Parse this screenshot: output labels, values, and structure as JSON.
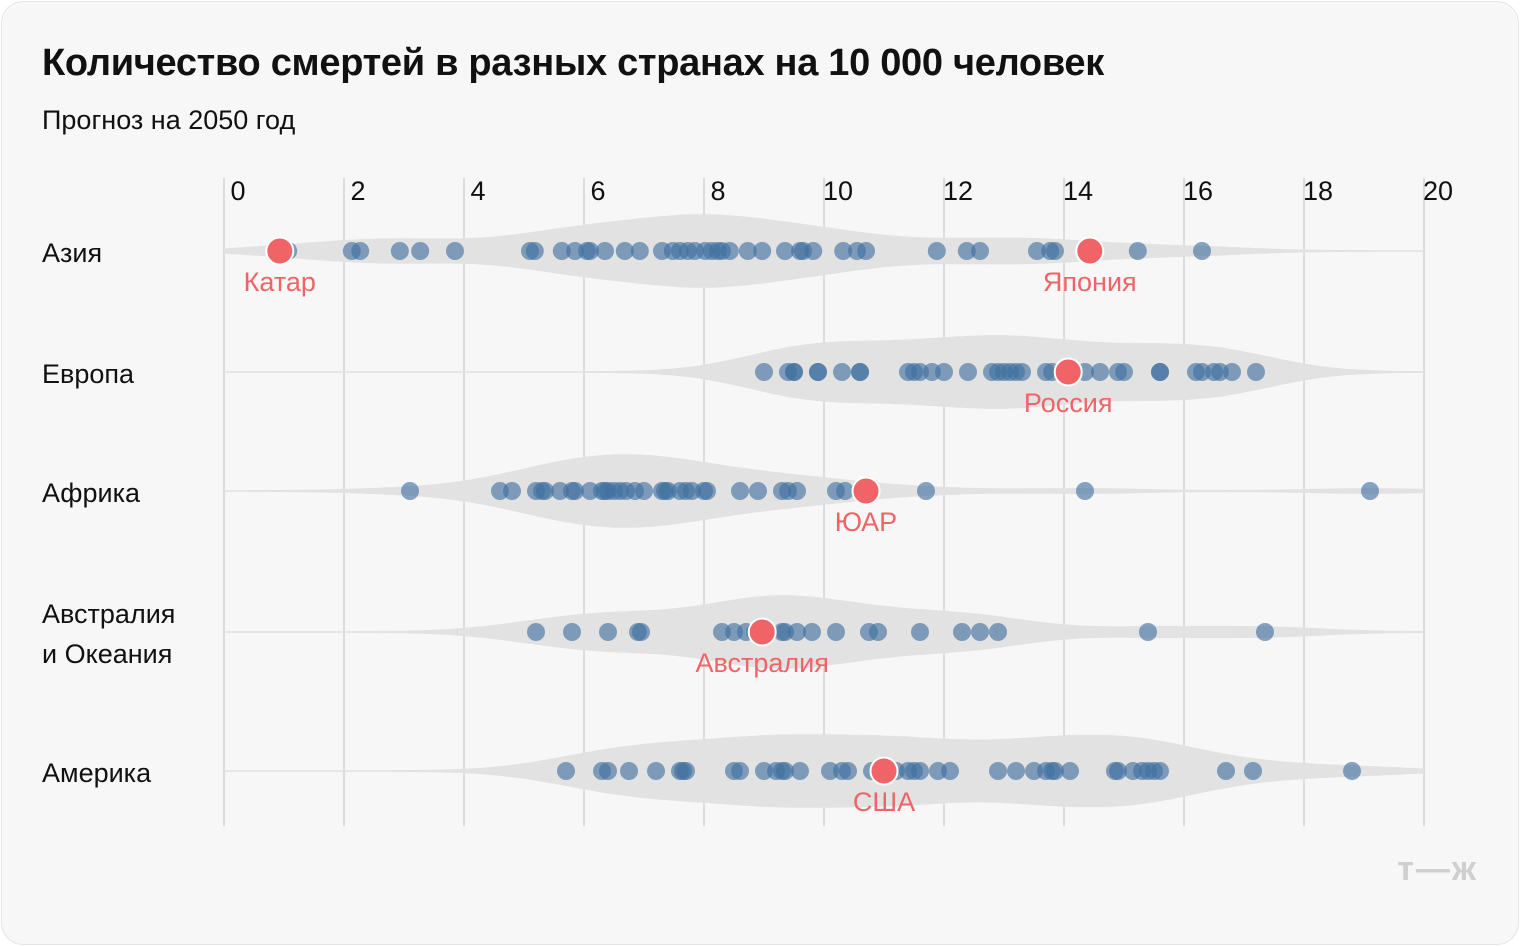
{
  "title": "Количество смертей в разных странах на 10 000 человек",
  "subtitle": "Прогноз на 2050 год",
  "logo": "т—ж",
  "chart_data": {
    "type": "violin-strip",
    "title": "Количество смертей в разных странах на 10 000 человек",
    "subtitle": "Прогноз на 2050 год",
    "xlim": [
      0,
      20
    ],
    "xticks": [
      0,
      2,
      4,
      6,
      8,
      10,
      12,
      14,
      16,
      18,
      20
    ],
    "grid": true,
    "colors": {
      "dots": "#3f6f9f",
      "highlight": "#f06468",
      "violin": "#e2e2e2"
    },
    "categories": [
      {
        "label": "Азия",
        "values": [
          1.07,
          2.13,
          2.27,
          2.93,
          3.27,
          3.85,
          5.1,
          5.18,
          5.63,
          5.85,
          6.05,
          6.1,
          6.35,
          6.68,
          6.93,
          7.3,
          7.48,
          7.6,
          7.73,
          7.85,
          8.02,
          8.13,
          8.23,
          8.3,
          8.43,
          8.73,
          8.97,
          9.35,
          9.6,
          9.65,
          9.82,
          10.32,
          10.55,
          10.7,
          11.88,
          12.38,
          12.6,
          13.55,
          13.77,
          13.85,
          15.23,
          16.3
        ],
        "highlights": [
          {
            "name": "Катар",
            "value": 0.93
          },
          {
            "name": "Япония",
            "value": 14.43
          }
        ]
      },
      {
        "label": "Европа",
        "values": [
          9.0,
          9.4,
          9.5,
          9.5,
          9.9,
          9.9,
          10.3,
          10.6,
          10.6,
          11.4,
          11.5,
          11.6,
          11.8,
          12.0,
          12.4,
          12.8,
          12.9,
          13.0,
          13.1,
          13.2,
          13.3,
          13.7,
          13.8,
          14.35,
          14.6,
          14.9,
          15.0,
          15.6,
          15.6,
          16.2,
          16.3,
          16.5,
          16.6,
          16.8,
          17.2
        ],
        "highlights": [
          {
            "name": "Россия",
            "value": 14.07
          }
        ]
      },
      {
        "label": "Африка",
        "values": [
          3.1,
          4.6,
          4.8,
          5.2,
          5.3,
          5.35,
          5.6,
          5.8,
          5.85,
          6.1,
          6.3,
          6.35,
          6.4,
          6.5,
          6.6,
          6.7,
          6.85,
          7.0,
          7.3,
          7.35,
          7.4,
          7.6,
          7.7,
          7.8,
          8.0,
          8.05,
          8.6,
          8.9,
          9.3,
          9.4,
          9.55,
          10.2,
          10.35,
          11.7,
          14.35,
          19.1
        ],
        "highlights": [
          {
            "name": "ЮАР",
            "value": 10.7
          }
        ]
      },
      {
        "label": "Австралия и Океания",
        "label_lines": [
          "Австралия",
          "и Океания"
        ],
        "values": [
          5.2,
          5.8,
          6.4,
          6.9,
          6.95,
          8.3,
          8.5,
          8.7,
          8.85,
          9.3,
          9.35,
          9.55,
          9.8,
          10.2,
          10.75,
          10.9,
          11.6,
          12.3,
          12.6,
          12.9,
          15.4,
          17.35
        ],
        "highlights": [
          {
            "name": "Австралия",
            "value": 8.97
          }
        ]
      },
      {
        "label": "Америка",
        "values": [
          5.7,
          6.3,
          6.4,
          6.75,
          7.2,
          7.6,
          7.65,
          7.7,
          8.5,
          8.6,
          9.0,
          9.2,
          9.3,
          9.35,
          9.6,
          10.1,
          10.3,
          10.4,
          10.8,
          11.2,
          11.4,
          11.5,
          11.6,
          11.9,
          12.1,
          12.9,
          13.2,
          13.5,
          13.7,
          13.8,
          13.85,
          14.1,
          14.85,
          14.9,
          15.15,
          15.3,
          15.4,
          15.5,
          15.6,
          16.7,
          17.15,
          18.8
        ],
        "highlights": [
          {
            "name": "США",
            "value": 11.0
          }
        ]
      }
    ]
  }
}
